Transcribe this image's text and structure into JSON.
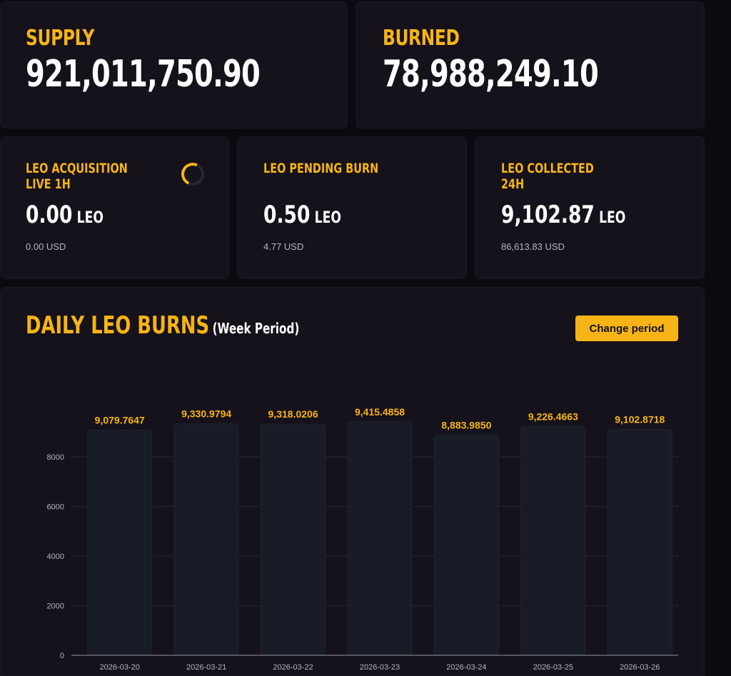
{
  "supply": {
    "label": "SUPPLY",
    "value": "921,011,750.90"
  },
  "burned": {
    "label": "BURNED",
    "value": "78,988,249.10"
  },
  "acquisition": {
    "label_line1": "LEO ACQUISITION",
    "label_line2": "LIVE 1H",
    "value": "0.00",
    "unit": "LEO",
    "usd": "0.00 USD"
  },
  "pending": {
    "label_line1": "LEO PENDING BURN",
    "value": "0.50",
    "unit": "LEO",
    "usd": "4.77 USD"
  },
  "collected": {
    "label_line1": "LEO COLLECTED",
    "label_line2": "24H",
    "value": "9,102.87",
    "unit": "LEO",
    "usd": "86,613.83 USD"
  },
  "chart": {
    "title": "DAILY LEO BURNS",
    "subtitle": "(Week Period)",
    "button_label": "Change period"
  },
  "colors": {
    "accent": "#f7b417",
    "background": "#0c0a10",
    "card": "#15121b",
    "bar": "#171c27"
  },
  "chart_data": {
    "type": "bar",
    "title": "DAILY LEO BURNS",
    "subtitle": "(Week Period)",
    "categories": [
      "2026-03-20",
      "2026-03-21",
      "2026-03-22",
      "2026-03-23",
      "2026-03-24",
      "2026-03-25",
      "2026-03-26"
    ],
    "values": [
      9079.7647,
      9330.9794,
      9318.0206,
      9415.4858,
      8883.985,
      9226.4663,
      9102.8718
    ],
    "value_labels": [
      "9,079.7647",
      "9,330.9794",
      "9,318.0206",
      "9,415.4858",
      "8,883.9850",
      "9,226.4663",
      "9,102.8718"
    ],
    "yticks": [
      0,
      2000,
      4000,
      6000,
      8000
    ],
    "ylim": [
      0,
      8000
    ],
    "grid": true,
    "xlabel": "",
    "ylabel": ""
  }
}
